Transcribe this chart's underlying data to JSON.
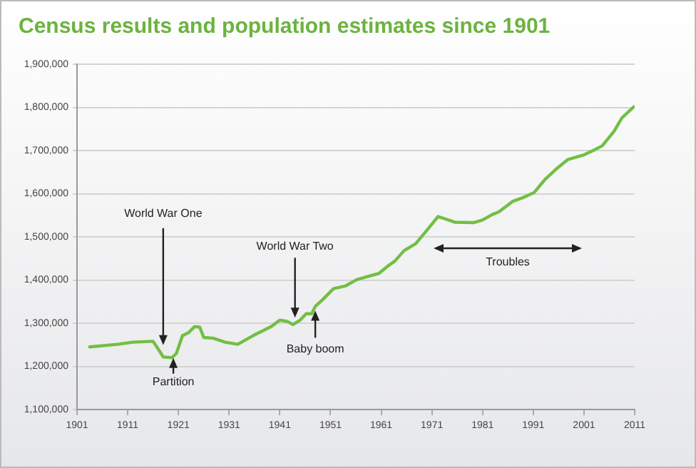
{
  "chart_data": {
    "type": "line",
    "title": "Census results and population estimates since 1901",
    "series": [
      {
        "color": "#72bf44",
        "x": [
          1903.5,
          1909,
          1912,
          1916,
          1917.4,
          1918,
          1919.7,
          1920.6,
          1921.8,
          1923,
          1924.2,
          1925.2,
          1926,
          1927.9,
          1930.2,
          1932.7,
          1935.7,
          1939.3,
          1941,
          1942.5,
          1943.6,
          1945,
          1946.2,
          1947.3,
          1948,
          1949.4,
          1951.6,
          1953.9,
          1956.2,
          1958.3,
          1960.5,
          1962.4,
          1963.7,
          1965.5,
          1967.8,
          1970.5,
          1972.2,
          1973.3,
          1975.5,
          1979.2,
          1981,
          1982.8,
          1984.2,
          1986.9,
          1989.2,
          1991.2,
          1993.3,
          1995.5,
          1997.8,
          2001,
          2002.8,
          2004.6,
          2006.9,
          2008.5,
          2010.8
        ],
        "values": [
          1245000,
          1251000,
          1256000,
          1258000,
          1233000,
          1222000,
          1220000,
          1230000,
          1271000,
          1278000,
          1292000,
          1291000,
          1267000,
          1265000,
          1256000,
          1251000,
          1271000,
          1292000,
          1307000,
          1304000,
          1297000,
          1307000,
          1322000,
          1322000,
          1339000,
          1354000,
          1380000,
          1386000,
          1401000,
          1408000,
          1415000,
          1433000,
          1444000,
          1468000,
          1484000,
          1522000,
          1547000,
          1543000,
          1534000,
          1533000,
          1539000,
          1551000,
          1558000,
          1582000,
          1592000,
          1603000,
          1633000,
          1657000,
          1679000,
          1690000,
          1700000,
          1711000,
          1744000,
          1776000,
          1801000
        ]
      }
    ],
    "xlim": [
      1901,
      2011
    ],
    "xticks": [
      1901,
      1911,
      1921,
      1931,
      1941,
      1951,
      1961,
      1971,
      1981,
      1991,
      2001,
      2011
    ],
    "ylim": [
      1100000,
      1900000
    ],
    "yticks": [
      {
        "value": 1100000,
        "label": "1,100,000"
      },
      {
        "value": 1200000,
        "label": "1,200,000"
      },
      {
        "value": 1300000,
        "label": "1,300,000"
      },
      {
        "value": 1400000,
        "label": "1,400,000"
      },
      {
        "value": 1500000,
        "label": "1,500,000"
      },
      {
        "value": 1600000,
        "label": "1,600,000"
      },
      {
        "value": 1700000,
        "label": "1,700,000"
      },
      {
        "value": 1800000,
        "label": "1,800,000"
      },
      {
        "value": 1900000,
        "label": "1,900,000"
      }
    ],
    "grid": "y",
    "legend": false,
    "marker": "none",
    "line_style": "solid",
    "annotations": [
      {
        "text": "World War One",
        "x": 1918,
        "y": 1249000
      },
      {
        "text": "Partition",
        "x": 1920,
        "y": 1226000
      },
      {
        "text": "World War Two",
        "x": 1944,
        "y": 1306000
      },
      {
        "text": "Baby boom",
        "x": 1948,
        "y": 1339000
      },
      "Troubles"
    ]
  }
}
